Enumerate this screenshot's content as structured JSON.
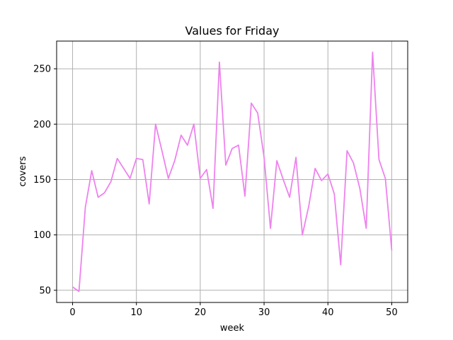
{
  "chart_data": {
    "type": "line",
    "title": "Values for Friday",
    "xlabel": "week",
    "ylabel": "covers",
    "xlim": [
      -2.5,
      52.5
    ],
    "ylim": [
      39,
      275
    ],
    "xticks": [
      0,
      10,
      20,
      30,
      40,
      50
    ],
    "yticks": [
      50,
      100,
      150,
      200,
      250
    ],
    "grid": true,
    "series": [
      {
        "color": "#ee82ee",
        "x": [
          0,
          1,
          2,
          3,
          4,
          5,
          6,
          7,
          8,
          9,
          10,
          11,
          12,
          13,
          14,
          15,
          16,
          17,
          18,
          19,
          20,
          21,
          22,
          23,
          24,
          25,
          26,
          27,
          28,
          29,
          30,
          31,
          32,
          33,
          34,
          35,
          36,
          37,
          38,
          39,
          40,
          41,
          42,
          43,
          44,
          45,
          46,
          47,
          48,
          49,
          50
        ],
        "values": [
          53,
          49,
          125,
          158,
          134,
          138,
          148,
          169,
          160,
          151,
          169,
          168,
          128,
          200,
          176,
          151,
          167,
          190,
          181,
          200,
          151,
          159,
          124,
          256,
          163,
          178,
          181,
          135,
          219,
          210,
          170,
          106,
          167,
          150,
          134,
          170,
          100,
          126,
          160,
          149,
          155,
          137,
          73,
          176,
          165,
          142,
          106,
          265,
          168,
          151,
          86
        ]
      }
    ]
  }
}
